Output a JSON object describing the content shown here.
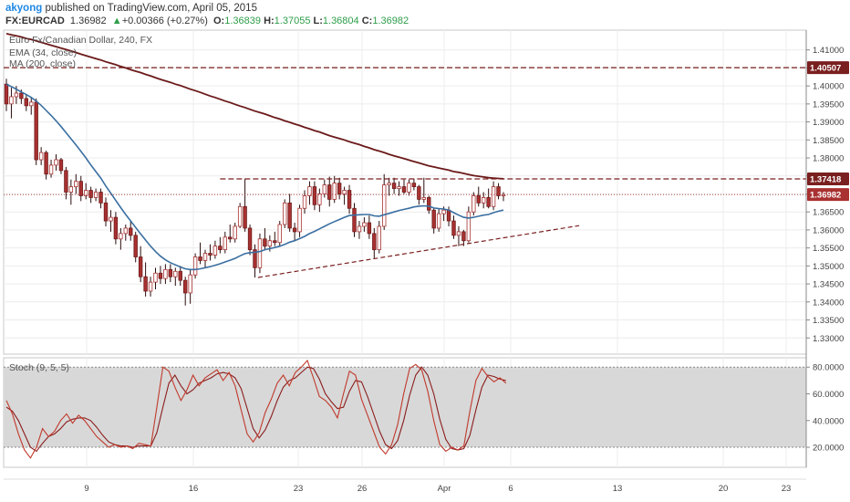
{
  "header": {
    "user": "akyong",
    "published": " published on TradingView.com, April 05, 2015",
    "symbol": "FX:EURCAD",
    "last": "1.36982",
    "change": "+0.00366 (+0.27%)",
    "o_label": "O:",
    "o_value": "1.36839",
    "h_label": "H:",
    "h_value": "1.37055",
    "l_label": "L:",
    "l_value": "1.36804",
    "c_label": "C:",
    "c_value": "1.36982"
  },
  "colors": {
    "bull": "#a93131",
    "bear": "#a93131",
    "ema": "#3a6fa1",
    "ma": "#6b1a1a",
    "level": "#7a1f1f",
    "stoch_k": "#c0392b",
    "stoch_d": "#8b1c1c",
    "stoch_band": "#d8d8d8",
    "current": "#a93131"
  },
  "chart_data": [
    {
      "type": "candlestick",
      "title": "Euro Fx/Canadian Dollar, 240, FX",
      "indicators": [
        "EMA (34, close)",
        "MA (200, close)"
      ],
      "ylim": [
        1.3255,
        1.4155
      ],
      "y_ticks": [
        "1.41000",
        "1.40500",
        "1.40000",
        "1.39500",
        "1.39000",
        "1.38500",
        "1.38000",
        "1.37500",
        "1.37000",
        "1.36500",
        "1.36000",
        "1.35500",
        "1.35000",
        "1.34500",
        "1.34000",
        "1.33500",
        "1.33000"
      ],
      "x_ticks": [
        "9",
        "16",
        "23",
        "26",
        "Apr",
        "6",
        "13",
        "20",
        "23"
      ],
      "price_labels": [
        {
          "label": "1.40507",
          "value": 1.40507
        },
        {
          "label": "1.37418",
          "value": 1.37418
        },
        {
          "label": "1.36982",
          "value": 1.36982
        }
      ],
      "candles": [
        [
          1.4005,
          1.402,
          1.393,
          1.395
        ],
        [
          1.395,
          1.3995,
          1.391,
          1.397
        ],
        [
          1.397,
          1.4,
          1.395,
          1.398
        ],
        [
          1.398,
          1.399,
          1.395,
          1.3965
        ],
        [
          1.3965,
          1.3975,
          1.393,
          1.3945
        ],
        [
          1.3945,
          1.397,
          1.392,
          1.3955
        ],
        [
          1.3955,
          1.3965,
          1.378,
          1.3795
        ],
        [
          1.3795,
          1.383,
          1.378,
          1.3815
        ],
        [
          1.3815,
          1.382,
          1.374,
          1.3755
        ],
        [
          1.3755,
          1.3795,
          1.3745,
          1.378
        ],
        [
          1.378,
          1.381,
          1.3765,
          1.3795
        ],
        [
          1.3795,
          1.38,
          1.3755,
          1.3765
        ],
        [
          1.3765,
          1.3775,
          1.3685,
          1.3705
        ],
        [
          1.3705,
          1.374,
          1.367,
          1.372
        ],
        [
          1.372,
          1.3755,
          1.37,
          1.3735
        ],
        [
          1.3735,
          1.375,
          1.368,
          1.3695
        ],
        [
          1.3695,
          1.373,
          1.3685,
          1.371
        ],
        [
          1.371,
          1.372,
          1.3675,
          1.369
        ],
        [
          1.369,
          1.3715,
          1.368,
          1.3705
        ],
        [
          1.3705,
          1.3715,
          1.366,
          1.3675
        ],
        [
          1.3675,
          1.369,
          1.361,
          1.3625
        ],
        [
          1.3625,
          1.3655,
          1.3595,
          1.3635
        ],
        [
          1.3635,
          1.365,
          1.356,
          1.3575
        ],
        [
          1.3575,
          1.3605,
          1.3545,
          1.359
        ],
        [
          1.359,
          1.3615,
          1.357,
          1.3605
        ],
        [
          1.3605,
          1.3625,
          1.357,
          1.3585
        ],
        [
          1.3585,
          1.3595,
          1.351,
          1.3525
        ],
        [
          1.3525,
          1.3555,
          1.3455,
          1.347
        ],
        [
          1.347,
          1.351,
          1.3415,
          1.343
        ],
        [
          1.343,
          1.347,
          1.3415,
          1.3455
        ],
        [
          1.3455,
          1.3495,
          1.3435,
          1.348
        ],
        [
          1.348,
          1.35,
          1.345,
          1.3465
        ],
        [
          1.3465,
          1.3505,
          1.345,
          1.349
        ],
        [
          1.349,
          1.3505,
          1.3455,
          1.347
        ],
        [
          1.347,
          1.3495,
          1.3445,
          1.3485
        ],
        [
          1.3485,
          1.35,
          1.3445,
          1.346
        ],
        [
          1.346,
          1.347,
          1.339,
          1.3425
        ],
        [
          1.3425,
          1.349,
          1.3395,
          1.3475
        ],
        [
          1.3475,
          1.3535,
          1.3465,
          1.3525
        ],
        [
          1.3525,
          1.3565,
          1.3505,
          1.3515
        ],
        [
          1.3515,
          1.3545,
          1.3495,
          1.3535
        ],
        [
          1.3535,
          1.356,
          1.3515,
          1.353
        ],
        [
          1.353,
          1.357,
          1.352,
          1.3555
        ],
        [
          1.3555,
          1.358,
          1.3535,
          1.3545
        ],
        [
          1.3545,
          1.3595,
          1.3535,
          1.358
        ],
        [
          1.358,
          1.3615,
          1.3565,
          1.3575
        ],
        [
          1.3575,
          1.362,
          1.3565,
          1.361
        ],
        [
          1.361,
          1.3675,
          1.3605,
          1.3665
        ],
        [
          1.3665,
          1.3742,
          1.3595,
          1.3605
        ],
        [
          1.3605,
          1.3615,
          1.353,
          1.3545
        ],
        [
          1.3545,
          1.356,
          1.3468,
          1.3495
        ],
        [
          1.3495,
          1.359,
          1.348,
          1.3575
        ],
        [
          1.3575,
          1.3605,
          1.3545,
          1.3555
        ],
        [
          1.3555,
          1.3585,
          1.354,
          1.357
        ],
        [
          1.357,
          1.3595,
          1.3555,
          1.3565
        ],
        [
          1.3565,
          1.3625,
          1.3555,
          1.3615
        ],
        [
          1.3615,
          1.3685,
          1.3605,
          1.3675
        ],
        [
          1.3675,
          1.37,
          1.3595,
          1.3605
        ],
        [
          1.3605,
          1.362,
          1.357,
          1.3595
        ],
        [
          1.3595,
          1.367,
          1.358,
          1.366
        ],
        [
          1.366,
          1.371,
          1.3645,
          1.3695
        ],
        [
          1.3695,
          1.3735,
          1.367,
          1.372
        ],
        [
          1.372,
          1.3735,
          1.3655,
          1.367
        ],
        [
          1.367,
          1.3715,
          1.365,
          1.37
        ],
        [
          1.37,
          1.374,
          1.369,
          1.3725
        ],
        [
          1.3725,
          1.3748,
          1.3665,
          1.3685
        ],
        [
          1.3685,
          1.375,
          1.3675,
          1.373
        ],
        [
          1.373,
          1.3745,
          1.3685,
          1.37
        ],
        [
          1.37,
          1.372,
          1.367,
          1.371
        ],
        [
          1.371,
          1.3725,
          1.3645,
          1.366
        ],
        [
          1.366,
          1.3675,
          1.358,
          1.3595
        ],
        [
          1.3595,
          1.3625,
          1.3575,
          1.361
        ],
        [
          1.361,
          1.3635,
          1.3595,
          1.362
        ],
        [
          1.362,
          1.364,
          1.3575,
          1.359
        ],
        [
          1.359,
          1.3605,
          1.352,
          1.3545
        ],
        [
          1.3545,
          1.3625,
          1.3535,
          1.361
        ],
        [
          1.361,
          1.3755,
          1.36,
          1.3725
        ],
        [
          1.3725,
          1.3745,
          1.3695,
          1.373
        ],
        [
          1.373,
          1.3745,
          1.37,
          1.3715
        ],
        [
          1.3715,
          1.3735,
          1.3695,
          1.372
        ],
        [
          1.372,
          1.374,
          1.37,
          1.3705
        ],
        [
          1.3705,
          1.374,
          1.3695,
          1.373
        ],
        [
          1.373,
          1.3742,
          1.371,
          1.372
        ],
        [
          1.372,
          1.3725,
          1.367,
          1.3685
        ],
        [
          1.3685,
          1.3745,
          1.3675,
          1.369
        ],
        [
          1.369,
          1.3695,
          1.3645,
          1.3655
        ],
        [
          1.3655,
          1.366,
          1.359,
          1.3605
        ],
        [
          1.3605,
          1.366,
          1.3595,
          1.3645
        ],
        [
          1.3645,
          1.3665,
          1.3625,
          1.3655
        ],
        [
          1.3655,
          1.3665,
          1.361,
          1.3625
        ],
        [
          1.3625,
          1.364,
          1.3575,
          1.3585
        ],
        [
          1.3585,
          1.361,
          1.3555,
          1.3595
        ],
        [
          1.3595,
          1.36,
          1.3555,
          1.357
        ],
        [
          1.357,
          1.3665,
          1.3565,
          1.365
        ],
        [
          1.365,
          1.3705,
          1.364,
          1.3695
        ],
        [
          1.3695,
          1.372,
          1.3665,
          1.3675
        ],
        [
          1.3675,
          1.3705,
          1.366,
          1.369
        ],
        [
          1.369,
          1.3715,
          1.366,
          1.3665
        ],
        [
          1.3665,
          1.3735,
          1.3655,
          1.372
        ],
        [
          1.372,
          1.373,
          1.3685,
          1.3695
        ],
        [
          1.3695,
          1.3705,
          1.368,
          1.3698
        ]
      ],
      "ema_34": [
        1.4005,
        1.3998,
        1.3991,
        1.3983,
        1.3976,
        1.3968,
        1.3958,
        1.3946,
        1.3932,
        1.3918,
        1.3903,
        1.3887,
        1.387,
        1.3853,
        1.3836,
        1.3818,
        1.38,
        1.378,
        1.3762,
        1.3744,
        1.3722,
        1.3702,
        1.3682,
        1.3662,
        1.3643,
        1.3625,
        1.3607,
        1.3589,
        1.3572,
        1.3555,
        1.354,
        1.3527,
        1.3517,
        1.3509,
        1.3503,
        1.3497,
        1.3492,
        1.349,
        1.349,
        1.3492,
        1.3495,
        1.3498,
        1.3502,
        1.3506,
        1.3511,
        1.3516,
        1.3521,
        1.3528,
        1.3534,
        1.3537,
        1.3538,
        1.354,
        1.3545,
        1.3548,
        1.3551,
        1.3555,
        1.356,
        1.3566,
        1.357,
        1.3576,
        1.3582,
        1.359,
        1.3596,
        1.3603,
        1.361,
        1.3617,
        1.3623,
        1.3629,
        1.3635,
        1.364,
        1.3641,
        1.3642,
        1.3643,
        1.3643,
        1.3639,
        1.3638,
        1.3642,
        1.3646,
        1.365,
        1.3654,
        1.3657,
        1.366,
        1.3664,
        1.3666,
        1.3667,
        1.3666,
        1.3661,
        1.3659,
        1.3658,
        1.3655,
        1.3648,
        1.3641,
        1.3635,
        1.3633,
        1.3635,
        1.3638,
        1.3641,
        1.3643,
        1.3648,
        1.3652,
        1.3655
      ],
      "ma_200": [
        1.4145,
        1.4142,
        1.4139,
        1.4136,
        1.4132,
        1.4129,
        1.4125,
        1.4121,
        1.4117,
        1.4113,
        1.4109,
        1.4105,
        1.4101,
        1.4097,
        1.4093,
        1.4088,
        1.4084,
        1.408,
        1.4076,
        1.4072,
        1.4067,
        1.4063,
        1.4059,
        1.4054,
        1.405,
        1.4045,
        1.4041,
        1.4037,
        1.4032,
        1.4028,
        1.4023,
        1.4018,
        1.4014,
        1.401,
        1.4005,
        1.4001,
        1.3996,
        1.3991,
        1.3987,
        1.3982,
        1.3977,
        1.3972,
        1.3968,
        1.3963,
        1.3958,
        1.3954,
        1.3949,
        1.3944,
        1.394,
        1.3935,
        1.393,
        1.3926,
        1.3922,
        1.3917,
        1.3912,
        1.3908,
        1.3903,
        1.3899,
        1.3894,
        1.389,
        1.3885,
        1.3881,
        1.3876,
        1.3872,
        1.3867,
        1.3862,
        1.3858,
        1.3854,
        1.385,
        1.3845,
        1.3841,
        1.3837,
        1.3832,
        1.3828,
        1.3823,
        1.3819,
        1.3815,
        1.381,
        1.3806,
        1.3802,
        1.3798,
        1.3794,
        1.379,
        1.3786,
        1.3782,
        1.3778,
        1.3775,
        1.3772,
        1.3769,
        1.3766,
        1.3762,
        1.376,
        1.3757,
        1.3754,
        1.3751,
        1.3749,
        1.3747,
        1.3745,
        1.3744,
        1.3743,
        1.3742
      ],
      "resistance_level": 1.37418,
      "upper_level": 1.40507
    },
    {
      "type": "line",
      "title": "Stoch (9, 5, 5)",
      "ylim": [
        5,
        87
      ],
      "y_ticks": [
        "80.0000",
        "60.0000",
        "40.0000",
        "20.0000"
      ],
      "band": [
        20,
        80
      ],
      "k": [
        55,
        45,
        30,
        18,
        12,
        20,
        34,
        28,
        32,
        40,
        45,
        38,
        44,
        40,
        34,
        28,
        24,
        20,
        22,
        20,
        21,
        19,
        23,
        22,
        21,
        50,
        80,
        77,
        65,
        55,
        63,
        74,
        66,
        72,
        75,
        78,
        70,
        76,
        66,
        48,
        30,
        24,
        31,
        46,
        56,
        68,
        74,
        66,
        76,
        80,
        85,
        72,
        58,
        55,
        50,
        42,
        60,
        77,
        74,
        56,
        44,
        32,
        20,
        15,
        22,
        37,
        60,
        79,
        82,
        78,
        62,
        40,
        22,
        17,
        20,
        18,
        21,
        47,
        70,
        79,
        73,
        69,
        72,
        68
      ],
      "d": [
        50,
        47,
        40,
        30,
        20,
        17,
        23,
        28,
        30,
        34,
        39,
        41,
        42,
        42,
        40,
        35,
        29,
        24,
        22,
        21,
        21,
        20,
        21,
        21,
        21,
        31,
        50,
        68,
        74,
        66,
        60,
        63,
        68,
        70,
        72,
        75,
        76,
        75,
        72,
        64,
        49,
        34,
        27,
        33,
        43,
        55,
        65,
        70,
        72,
        76,
        80,
        79,
        71,
        60,
        54,
        49,
        50,
        62,
        70,
        69,
        58,
        45,
        32,
        22,
        19,
        25,
        40,
        59,
        74,
        80,
        74,
        60,
        41,
        26,
        19,
        18,
        19,
        29,
        48,
        65,
        74,
        73,
        71,
        70
      ],
      "x_ticks": [
        "9",
        "16",
        "23",
        "26",
        "Apr",
        "6",
        "13",
        "20",
        "23"
      ]
    }
  ]
}
